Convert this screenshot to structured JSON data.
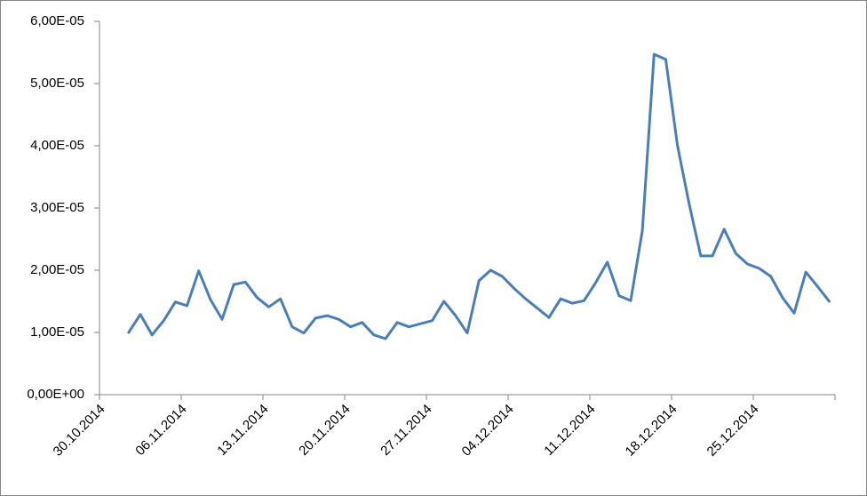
{
  "chart_data": {
    "type": "line",
    "x": [
      "01.11.2014",
      "02.11.2014",
      "03.11.2014",
      "04.11.2014",
      "05.11.2014",
      "06.11.2014",
      "07.11.2014",
      "08.11.2014",
      "09.11.2014",
      "10.11.2014",
      "11.11.2014",
      "12.11.2014",
      "13.11.2014",
      "14.11.2014",
      "15.11.2014",
      "16.11.2014",
      "17.11.2014",
      "18.11.2014",
      "19.11.2014",
      "20.11.2014",
      "21.11.2014",
      "22.11.2014",
      "23.11.2014",
      "24.11.2014",
      "25.11.2014",
      "26.11.2014",
      "27.11.2014",
      "28.11.2014",
      "29.11.2014",
      "30.11.2014",
      "01.12.2014",
      "02.12.2014",
      "03.12.2014",
      "04.12.2014",
      "05.12.2014",
      "06.12.2014",
      "07.12.2014",
      "08.12.2014",
      "09.12.2014",
      "10.12.2014",
      "11.12.2014",
      "12.12.2014",
      "13.12.2014",
      "14.12.2014",
      "15.12.2014",
      "16.12.2014",
      "17.12.2014",
      "18.12.2014",
      "19.12.2014",
      "20.12.2014",
      "21.12.2014",
      "22.12.2014",
      "23.12.2014",
      "24.12.2014",
      "25.12.2014",
      "26.12.2014",
      "27.12.2014",
      "28.12.2014",
      "29.12.2014",
      "30.12.2014",
      "31.12.2014"
    ],
    "series": [
      {
        "color": "#4a7ebb",
        "values": [
          1e-05,
          1.29e-05,
          9.6e-06,
          1.19e-05,
          1.49e-05,
          1.43e-05,
          1.99e-05,
          1.53e-05,
          1.21e-05,
          1.77e-05,
          1.81e-05,
          1.56e-05,
          1.41e-05,
          1.54e-05,
          1.09e-05,
          9.9e-06,
          1.23e-05,
          1.27e-05,
          1.21e-05,
          1.09e-05,
          1.16e-05,
          9.6e-06,
          9e-06,
          1.16e-05,
          1.09e-05,
          1.14e-05,
          1.19e-05,
          1.5e-05,
          1.27e-05,
          9.9e-06,
          1.83e-05,
          2e-05,
          1.9e-05,
          1.71e-05,
          1.54e-05,
          1.39e-05,
          1.24e-05,
          1.54e-05,
          1.47e-05,
          1.51e-05,
          1.8e-05,
          2.13e-05,
          1.59e-05,
          1.51e-05,
          2.64e-05,
          5.47e-05,
          5.39e-05,
          4.01e-05,
          3.07e-05,
          2.23e-05,
          2.23e-05,
          2.66e-05,
          2.27e-05,
          2.1e-05,
          2.03e-05,
          1.9e-05,
          1.56e-05,
          1.31e-05,
          1.97e-05,
          1.74e-05,
          1.5e-05
        ]
      }
    ],
    "xlim": [
      "30.10.2014",
      "01.01.2015"
    ],
    "xticks": [
      "30.10.2014",
      "06.11.2014",
      "13.11.2014",
      "20.11.2014",
      "27.11.2014",
      "04.12.2014",
      "11.12.2014",
      "18.12.2014",
      "25.12.2014"
    ],
    "ylim": [
      0,
      6e-05
    ],
    "yticks": [
      {
        "value": 0,
        "label": "0,00E+00"
      },
      {
        "value": 1e-05,
        "label": "1,00E-05"
      },
      {
        "value": 2e-05,
        "label": "2,00E-05"
      },
      {
        "value": 3e-05,
        "label": "3,00E-05"
      },
      {
        "value": 4e-05,
        "label": "4,00E-05"
      },
      {
        "value": 5e-05,
        "label": "5,00E-05"
      },
      {
        "value": 6e-05,
        "label": "6,00E-05"
      }
    ],
    "grid": false
  }
}
